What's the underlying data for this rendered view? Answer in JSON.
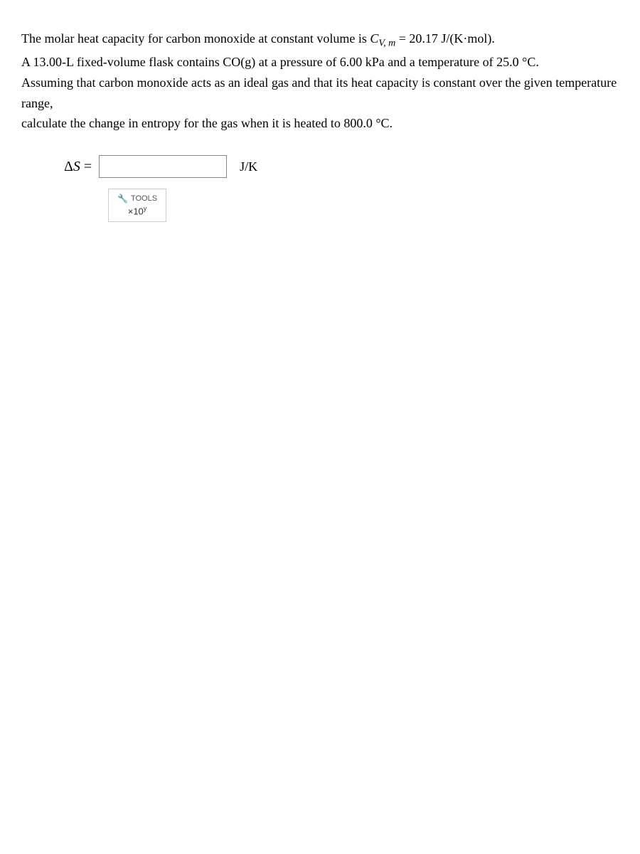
{
  "problem": {
    "line1_prefix": "The molar heat capacity for carbon monoxide at constant volume is ",
    "cv_var": "C",
    "cv_sub": "V, m",
    "line1_equals": " = 20.17 J/(K·mol).",
    "line2": "A 13.00-L fixed-volume flask contains CO(g) at a pressure of 6.00 kPa and a temperature of 25.0 °C.",
    "line3": "Assuming that carbon monoxide acts as an ideal gas and that its heat capacity is constant over the given temperature range,",
    "line4": "calculate the change in entropy for the gas when it is heated to 800.0 °C."
  },
  "answer": {
    "delta_s_label_prefix": "Δ",
    "delta_s_label_var": "S",
    "delta_s_label_equals": " = ",
    "input_value": "",
    "unit": "J/K"
  },
  "tools": {
    "label": "TOOLS",
    "sci_prefix": "×10",
    "sci_exp": "y"
  }
}
